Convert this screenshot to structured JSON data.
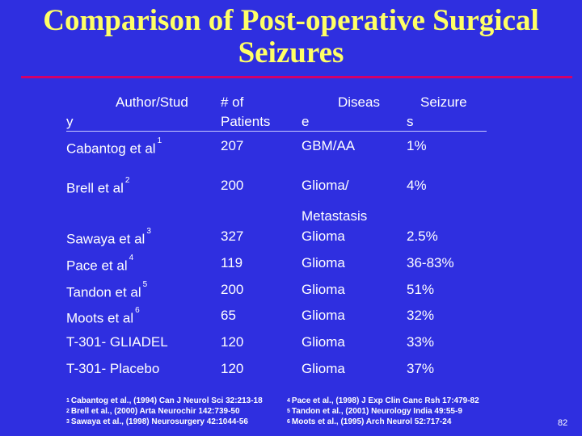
{
  "title": {
    "line1": "Comparison of Post-operative Surgical",
    "line2": "Seizures"
  },
  "header": {
    "author_a": "Author/Stud",
    "author_b": "y",
    "patients_a": "# of",
    "patients_b": "Patients",
    "disease_a": "Diseas",
    "disease_b": "e",
    "seizures_a": "Seizure",
    "seizures_b": "s"
  },
  "rows": [
    {
      "author": "Cabantog et al",
      "ref": "1",
      "patients": "207",
      "disease": "GBM/AA",
      "seizures": "1%"
    },
    {
      "author": "Brell et al",
      "ref": "2",
      "patients": "200",
      "disease": "Glioma/",
      "disease2": "Metastasis",
      "seizures": "4%"
    },
    {
      "author": "Sawaya et al",
      "ref": "3",
      "patients": "327",
      "disease": "Glioma",
      "seizures": "2.5%"
    },
    {
      "author": "Pace et al",
      "ref": "4",
      "patients": "119",
      "disease": "Glioma",
      "seizures": "36-83%"
    },
    {
      "author": "Tandon et al",
      "ref": "5",
      "patients": "200",
      "disease": "Glioma",
      "seizures": "51%"
    },
    {
      "author": "Moots et al",
      "ref": "6",
      "patients": "65",
      "disease": "Glioma",
      "seizures": "32%"
    },
    {
      "author": "T-301- GLIADEL",
      "ref": "",
      "patients": "120",
      "disease": "Glioma",
      "seizures": "33%"
    },
    {
      "author": "T-301- Placebo",
      "ref": "",
      "patients": "120",
      "disease": "Glioma",
      "seizures": "37%"
    }
  ],
  "footnotes": [
    {
      "n": "1",
      "text": "Cabantog et al., (1994) Can J Neurol Sci 32:213-18"
    },
    {
      "n": "2",
      "text": "Brell et al., (2000) Arta Neurochir 142:739-50"
    },
    {
      "n": "3",
      "text": "Sawaya et al., (1998) Neurosurgery 42:1044-56"
    },
    {
      "n": "4",
      "text": "Pace et al., (1998) J Exp Clin Canc Rsh 17:479-82"
    },
    {
      "n": "5",
      "text": "Tandon et al., (2001) Neurology India 49:55-9"
    },
    {
      "n": "6",
      "text": "Moots et al., (1995) Arch Neurol 52:717-24"
    }
  ],
  "page_number": "82",
  "colors": {
    "background": "#2f2fe0",
    "title": "#ffff66",
    "rule": "#d4006a",
    "text": "#ffffff"
  }
}
